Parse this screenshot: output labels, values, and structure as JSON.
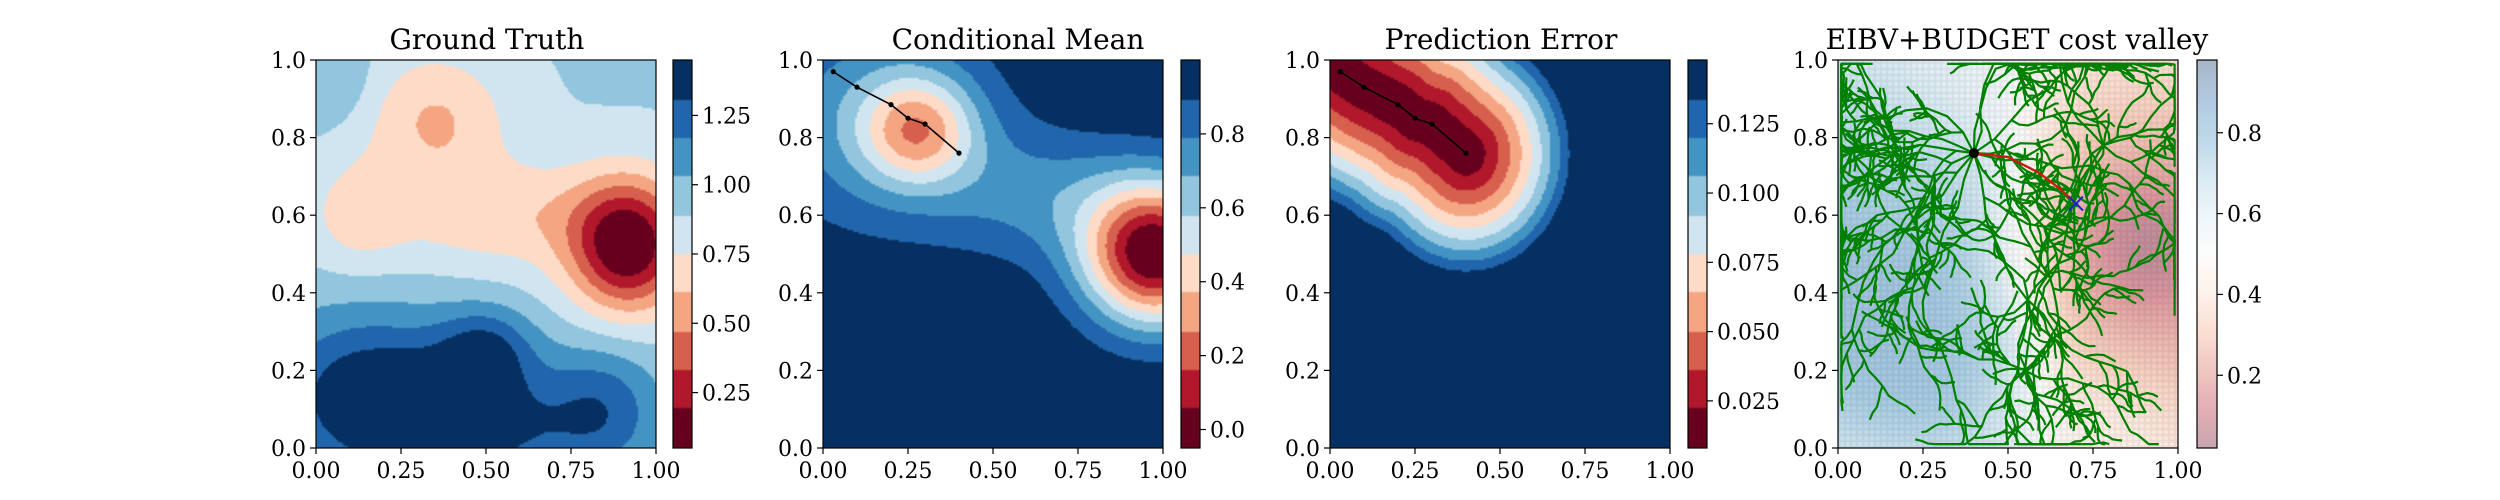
{
  "chart_data": [
    {
      "type": "heatmap",
      "title": "Ground Truth",
      "xlim": [
        0,
        1
      ],
      "ylim": [
        0,
        1
      ],
      "xticks": [
        "0.00",
        "0.25",
        "0.50",
        "0.75",
        "1.00"
      ],
      "yticks": [
        "0.0",
        "0.2",
        "0.4",
        "0.6",
        "0.8",
        "1.0"
      ],
      "colormap": "RdBu",
      "colorbar": {
        "ticks": [
          "0.25",
          "0.50",
          "0.75",
          "1.00",
          "1.25"
        ],
        "tick_values": [
          0.25,
          0.5,
          0.75,
          1.0,
          1.25
        ],
        "range": [
          0.05,
          1.45
        ]
      },
      "field": {
        "base": 0.9,
        "bumps": [
          {
            "x": 0.92,
            "y": 0.52,
            "amp": -0.85,
            "sx": 0.12,
            "sy": 0.12
          },
          {
            "x": 0.35,
            "y": 0.85,
            "amp": -0.3,
            "sx": 0.15,
            "sy": 0.12
          },
          {
            "x": 0.55,
            "y": 0.6,
            "amp": -0.25,
            "sx": 0.25,
            "sy": 0.1
          },
          {
            "x": 0.12,
            "y": 0.6,
            "amp": -0.2,
            "sx": 0.1,
            "sy": 0.1
          },
          {
            "x": 0.15,
            "y": 0.15,
            "amp": 0.45,
            "sx": 0.22,
            "sy": 0.15
          },
          {
            "x": 0.45,
            "y": 0.05,
            "amp": 0.45,
            "sx": 0.25,
            "sy": 0.12
          },
          {
            "x": 0.5,
            "y": 0.25,
            "amp": 0.35,
            "sx": 0.1,
            "sy": 0.08
          },
          {
            "x": 0.85,
            "y": 0.1,
            "amp": 0.3,
            "sx": 0.12,
            "sy": 0.12
          },
          {
            "x": 0.05,
            "y": 0.95,
            "amp": 0.15,
            "sx": 0.08,
            "sy": 0.08
          }
        ]
      }
    },
    {
      "type": "heatmap",
      "title": "Conditional Mean",
      "xlim": [
        0,
        1
      ],
      "ylim": [
        0,
        1
      ],
      "xticks": [
        "0.00",
        "0.25",
        "0.50",
        "0.75",
        "1.00"
      ],
      "yticks": [
        "0.0",
        "0.2",
        "0.4",
        "0.6",
        "0.8",
        "1.0"
      ],
      "colormap": "RdBu",
      "colorbar": {
        "ticks": [
          "0.0",
          "0.2",
          "0.4",
          "0.6",
          "0.8"
        ],
        "tick_values": [
          0.0,
          0.2,
          0.4,
          0.6,
          0.8
        ],
        "range": [
          -0.05,
          1.0
        ]
      },
      "field": {
        "base": 1.0,
        "bumps": [
          {
            "x": 0.98,
            "y": 0.5,
            "amp": -1.05,
            "sx": 0.15,
            "sy": 0.13
          },
          {
            "x": 0.28,
            "y": 0.82,
            "amp": -0.5,
            "sx": 0.12,
            "sy": 0.1
          },
          {
            "x": 0.15,
            "y": 0.85,
            "amp": -0.28,
            "sx": 0.25,
            "sy": 0.2
          },
          {
            "x": 0.65,
            "y": 0.65,
            "amp": -0.22,
            "sx": 0.22,
            "sy": 0.12
          }
        ]
      },
      "path": [
        [
          0.03,
          0.97
        ],
        [
          0.1,
          0.93
        ],
        [
          0.2,
          0.885
        ],
        [
          0.25,
          0.85
        ],
        [
          0.3,
          0.835
        ],
        [
          0.4,
          0.76
        ]
      ]
    },
    {
      "type": "heatmap",
      "title": "Prediction Error",
      "xlim": [
        0,
        1
      ],
      "ylim": [
        0,
        1
      ],
      "xticks": [
        "0.00",
        "0.25",
        "0.50",
        "0.75",
        "1.00"
      ],
      "yticks": [
        "0.0",
        "0.2",
        "0.4",
        "0.6",
        "0.8",
        "1.0"
      ],
      "colormap": "RdBu",
      "colorbar": {
        "ticks": [
          "0.025",
          "0.050",
          "0.075",
          "0.100",
          "0.125"
        ],
        "tick_values": [
          0.025,
          0.05,
          0.075,
          0.1,
          0.125
        ],
        "range": [
          0.008,
          0.148
        ]
      },
      "error_field": {
        "max": 0.148,
        "min": 0.008,
        "radius": 0.33
      },
      "path": [
        [
          0.03,
          0.97
        ],
        [
          0.1,
          0.93
        ],
        [
          0.2,
          0.885
        ],
        [
          0.25,
          0.85
        ],
        [
          0.3,
          0.835
        ],
        [
          0.4,
          0.76
        ]
      ]
    },
    {
      "type": "heatmap",
      "title": "EIBV+BUDGET cost valley",
      "xlim": [
        0,
        1
      ],
      "ylim": [
        0,
        1
      ],
      "xticks": [
        "0.00",
        "0.25",
        "0.50",
        "0.75",
        "1.00"
      ],
      "yticks": [
        "0.0",
        "0.2",
        "0.4",
        "0.6",
        "0.8",
        "1.0"
      ],
      "colormap": "RdBu",
      "colorbar": {
        "ticks": [
          "0.2",
          "0.4",
          "0.6",
          "0.8"
        ],
        "tick_values": [
          0.2,
          0.4,
          0.6,
          0.8
        ],
        "range": [
          0.02,
          0.98
        ]
      },
      "overlay": {
        "tree_root": [
          0.4,
          0.76
        ],
        "tree_color": "#008000",
        "current_location": [
          0.4,
          0.76
        ],
        "target": [
          0.7,
          0.63
        ],
        "target_color": "#1e22c8",
        "planned_path": [
          [
            0.4,
            0.76
          ],
          [
            0.5,
            0.75
          ],
          [
            0.59,
            0.71
          ],
          [
            0.65,
            0.67
          ],
          [
            0.7,
            0.63
          ]
        ],
        "planned_path_color": "#cc1a10"
      }
    }
  ]
}
